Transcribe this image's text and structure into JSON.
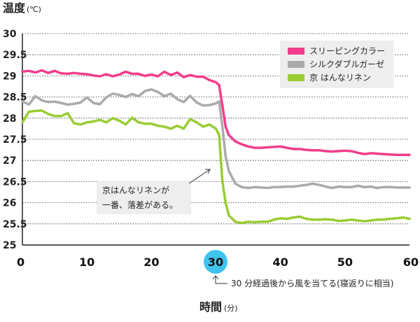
{
  "chart_data": {
    "type": "line",
    "title": "温度",
    "title_unit": "(℃)",
    "xlabel": "時間",
    "xlabel_unit": "(分)",
    "xlim": [
      0,
      60
    ],
    "ylim": [
      25,
      30
    ],
    "x_ticks": [
      "0",
      "10",
      "20",
      "30",
      "40",
      "50",
      "60"
    ],
    "y_ticks": [
      "30",
      "29.5",
      "29",
      "28.5",
      "28",
      "27.5",
      "27",
      "26.5",
      "26",
      "25.5",
      "25"
    ],
    "grid": true,
    "legend_position": "top-right",
    "highlight_tick": "30",
    "highlight_note": "30 分経過後から風を当てる(寝返りに相当)",
    "annotation": [
      "京はんなリネンが",
      "一番、落差がある。"
    ],
    "series": [
      {
        "name": "スリーピングカラー",
        "color": "#f23d8c",
        "points": [
          [
            0,
            29.1
          ],
          [
            1,
            29.12
          ],
          [
            2,
            29.08
          ],
          [
            3,
            29.13
          ],
          [
            4,
            29.07
          ],
          [
            5,
            29.12
          ],
          [
            6,
            29.06
          ],
          [
            7,
            29.05
          ],
          [
            8,
            29.07
          ],
          [
            9,
            29.05
          ],
          [
            10,
            29.04
          ],
          [
            11,
            29.01
          ],
          [
            12,
            28.99
          ],
          [
            13,
            29.04
          ],
          [
            14,
            28.99
          ],
          [
            15,
            29.03
          ],
          [
            16,
            29.1
          ],
          [
            17,
            29.05
          ],
          [
            18,
            29.05
          ],
          [
            19,
            29.0
          ],
          [
            20,
            29.03
          ],
          [
            21,
            28.99
          ],
          [
            22,
            29.1
          ],
          [
            23,
            29.02
          ],
          [
            24,
            29.08
          ],
          [
            25,
            28.97
          ],
          [
            26,
            29.02
          ],
          [
            27,
            28.98
          ],
          [
            28,
            28.98
          ],
          [
            29,
            28.9
          ],
          [
            30,
            28.85
          ],
          [
            30.5,
            28.78
          ],
          [
            31,
            28.3
          ],
          [
            31.5,
            27.8
          ],
          [
            32,
            27.6
          ],
          [
            33,
            27.45
          ],
          [
            34,
            27.38
          ],
          [
            35,
            27.33
          ],
          [
            36,
            27.3
          ],
          [
            37,
            27.3
          ],
          [
            38,
            27.31
          ],
          [
            39,
            27.32
          ],
          [
            40,
            27.33
          ],
          [
            41,
            27.3
          ],
          [
            42,
            27.27
          ],
          [
            43,
            27.27
          ],
          [
            44,
            27.25
          ],
          [
            45,
            27.24
          ],
          [
            46,
            27.24
          ],
          [
            47,
            27.22
          ],
          [
            48,
            27.21
          ],
          [
            49,
            27.22
          ],
          [
            50,
            27.23
          ],
          [
            51,
            27.22
          ],
          [
            52,
            27.18
          ],
          [
            53,
            27.15
          ],
          [
            54,
            27.17
          ],
          [
            55,
            27.16
          ],
          [
            56,
            27.15
          ],
          [
            57,
            27.14
          ],
          [
            58,
            27.13
          ],
          [
            59,
            27.13
          ],
          [
            60,
            27.13
          ]
        ]
      },
      {
        "name": "シルクダブルガーゼ",
        "color": "#aaaaaa",
        "points": [
          [
            0,
            28.4
          ],
          [
            1,
            28.32
          ],
          [
            2,
            28.52
          ],
          [
            3,
            28.42
          ],
          [
            4,
            28.38
          ],
          [
            5,
            28.39
          ],
          [
            6,
            28.36
          ],
          [
            7,
            28.32
          ],
          [
            8,
            28.34
          ],
          [
            9,
            28.37
          ],
          [
            10,
            28.49
          ],
          [
            11,
            28.36
          ],
          [
            12,
            28.33
          ],
          [
            13,
            28.49
          ],
          [
            14,
            28.58
          ],
          [
            15,
            28.55
          ],
          [
            16,
            28.5
          ],
          [
            17,
            28.57
          ],
          [
            18,
            28.52
          ],
          [
            19,
            28.64
          ],
          [
            20,
            28.68
          ],
          [
            21,
            28.62
          ],
          [
            22,
            28.52
          ],
          [
            23,
            28.58
          ],
          [
            24,
            28.45
          ],
          [
            25,
            28.38
          ],
          [
            26,
            28.53
          ],
          [
            27,
            28.37
          ],
          [
            28,
            28.3
          ],
          [
            29,
            28.31
          ],
          [
            30,
            28.35
          ],
          [
            30.5,
            28.4
          ],
          [
            31,
            27.8
          ],
          [
            31.5,
            27.1
          ],
          [
            32,
            26.75
          ],
          [
            33,
            26.45
          ],
          [
            34,
            26.37
          ],
          [
            35,
            26.35
          ],
          [
            36,
            26.37
          ],
          [
            37,
            26.36
          ],
          [
            38,
            26.35
          ],
          [
            39,
            26.37
          ],
          [
            40,
            26.37
          ],
          [
            41,
            26.38
          ],
          [
            42,
            26.38
          ],
          [
            43,
            26.4
          ],
          [
            44,
            26.42
          ],
          [
            45,
            26.45
          ],
          [
            46,
            26.42
          ],
          [
            47,
            26.38
          ],
          [
            48,
            26.35
          ],
          [
            49,
            26.38
          ],
          [
            50,
            26.37
          ],
          [
            51,
            26.37
          ],
          [
            52,
            26.4
          ],
          [
            53,
            26.37
          ],
          [
            54,
            26.38
          ],
          [
            55,
            26.35
          ],
          [
            56,
            26.37
          ],
          [
            57,
            26.37
          ],
          [
            58,
            26.36
          ],
          [
            59,
            26.36
          ],
          [
            60,
            26.36
          ]
        ]
      },
      {
        "name": "京 はんなリネン",
        "color": "#99cc33",
        "points": [
          [
            0,
            27.9
          ],
          [
            1,
            28.15
          ],
          [
            2,
            28.17
          ],
          [
            3,
            28.18
          ],
          [
            4,
            28.1
          ],
          [
            5,
            28.05
          ],
          [
            6,
            28.05
          ],
          [
            7,
            28.12
          ],
          [
            8,
            27.88
          ],
          [
            9,
            27.85
          ],
          [
            10,
            27.9
          ],
          [
            11,
            27.92
          ],
          [
            12,
            27.96
          ],
          [
            13,
            27.9
          ],
          [
            14,
            28.0
          ],
          [
            15,
            27.94
          ],
          [
            16,
            27.85
          ],
          [
            17,
            28.01
          ],
          [
            18,
            27.9
          ],
          [
            19,
            27.87
          ],
          [
            20,
            27.87
          ],
          [
            21,
            27.82
          ],
          [
            22,
            27.8
          ],
          [
            23,
            27.75
          ],
          [
            24,
            27.82
          ],
          [
            25,
            27.75
          ],
          [
            26,
            27.98
          ],
          [
            27,
            27.9
          ],
          [
            28,
            27.8
          ],
          [
            29,
            27.85
          ],
          [
            30,
            27.75
          ],
          [
            30.5,
            27.6
          ],
          [
            31,
            26.5
          ],
          [
            31.5,
            26.0
          ],
          [
            32,
            25.7
          ],
          [
            33,
            25.55
          ],
          [
            34,
            25.52
          ],
          [
            35,
            25.55
          ],
          [
            36,
            25.54
          ],
          [
            37,
            25.55
          ],
          [
            38,
            25.55
          ],
          [
            39,
            25.6
          ],
          [
            40,
            25.63
          ],
          [
            41,
            25.62
          ],
          [
            42,
            25.65
          ],
          [
            43,
            25.67
          ],
          [
            44,
            25.62
          ],
          [
            45,
            25.6
          ],
          [
            46,
            25.6
          ],
          [
            47,
            25.61
          ],
          [
            48,
            25.6
          ],
          [
            49,
            25.57
          ],
          [
            50,
            25.58
          ],
          [
            51,
            25.6
          ],
          [
            52,
            25.58
          ],
          [
            53,
            25.56
          ],
          [
            54,
            25.58
          ],
          [
            55,
            25.6
          ],
          [
            56,
            25.6
          ],
          [
            57,
            25.62
          ],
          [
            58,
            25.63
          ],
          [
            59,
            25.65
          ],
          [
            60,
            25.62
          ]
        ]
      }
    ]
  }
}
